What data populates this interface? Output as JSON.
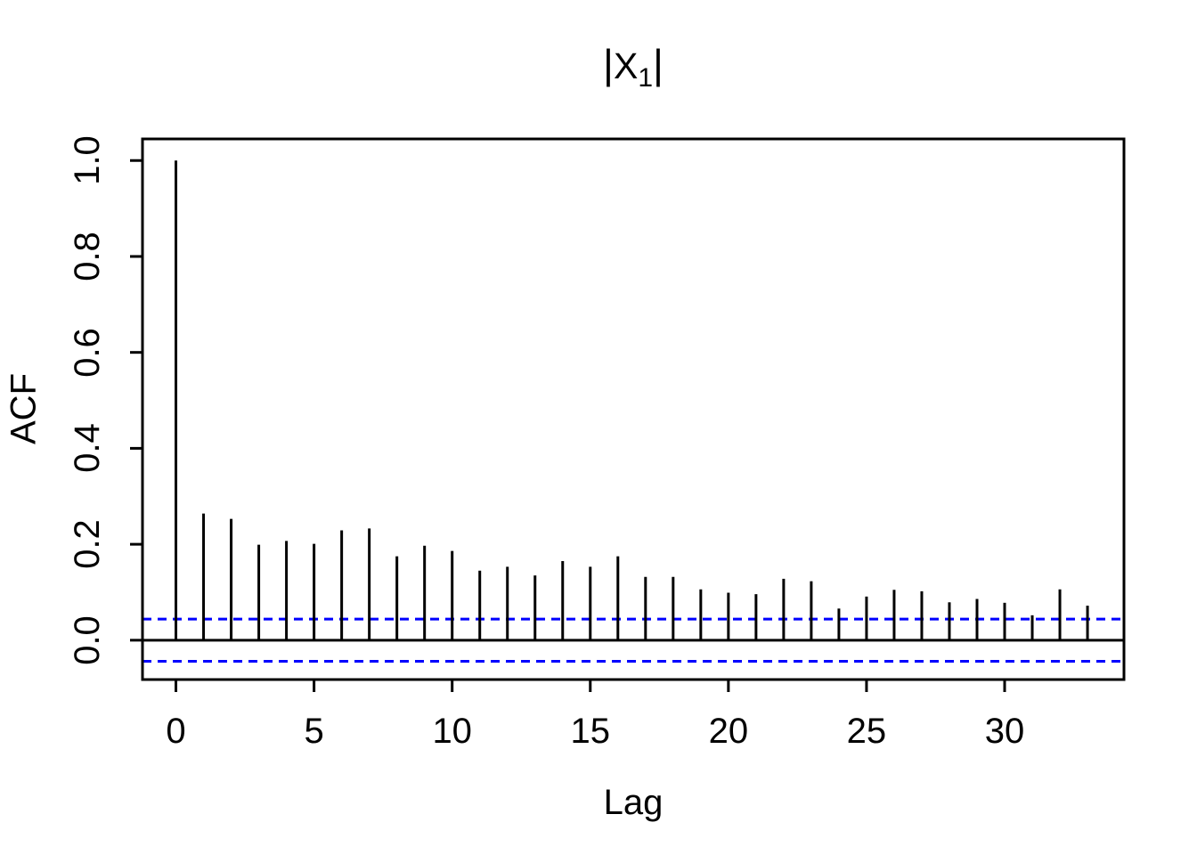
{
  "chart_data": {
    "type": "bar",
    "subtype": "acf-stick-plot",
    "title": {
      "open": "|",
      "variable": "X",
      "subscript": "1",
      "close": "|"
    },
    "title_text": "|X1|",
    "xlabel": "Lag",
    "ylabel": "ACF",
    "lags": [
      0,
      1,
      2,
      3,
      4,
      5,
      6,
      7,
      8,
      9,
      10,
      11,
      12,
      13,
      14,
      15,
      16,
      17,
      18,
      19,
      20,
      21,
      22,
      23,
      24,
      25,
      26,
      27,
      28,
      29,
      30,
      31,
      32,
      33
    ],
    "values": [
      1.0,
      0.264,
      0.253,
      0.199,
      0.207,
      0.201,
      0.229,
      0.233,
      0.175,
      0.197,
      0.186,
      0.145,
      0.153,
      0.135,
      0.165,
      0.153,
      0.175,
      0.132,
      0.132,
      0.106,
      0.099,
      0.096,
      0.128,
      0.123,
      0.066,
      0.091,
      0.105,
      0.102,
      0.079,
      0.086,
      0.078,
      0.052,
      0.106,
      0.072
    ],
    "confidence_band": 0.044,
    "x_ticks": [
      0,
      5,
      10,
      15,
      20,
      25,
      30
    ],
    "y_ticks": [
      "0.0",
      "0.2",
      "0.4",
      "0.6",
      "0.8",
      "1.0"
    ],
    "xlim": [
      -1.21,
      34.32
    ],
    "ylim": [
      -0.082,
      1.045
    ],
    "grid": false,
    "legend": false,
    "colors": {
      "bar": "#000000",
      "axis": "#000000",
      "zero_line": "#000000",
      "confidence_line": "#0000ff",
      "background": "#ffffff",
      "text": "#000000"
    }
  }
}
